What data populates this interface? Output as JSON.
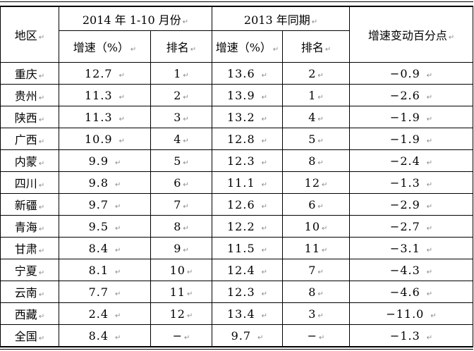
{
  "pmark": "↵",
  "table": {
    "headers": {
      "region": "地区",
      "period_2014": "2014 年 1-10 月份",
      "period_2013": "2013 年同期",
      "change": "增速变动百分点",
      "growth": "增速（%）",
      "rank": "排名"
    },
    "rows": [
      {
        "region": "重庆",
        "g2014": "12.7",
        "r2014": "1",
        "g2013": "13.6",
        "r2013": "2",
        "chg": "−0.9"
      },
      {
        "region": "贵州",
        "g2014": "11.3",
        "r2014": "2",
        "g2013": "13.9",
        "r2013": "1",
        "chg": "−2.6"
      },
      {
        "region": "陕西",
        "g2014": "11.3",
        "r2014": "3",
        "g2013": "13.2",
        "r2013": "4",
        "chg": "−1.9"
      },
      {
        "region": "广西",
        "g2014": "10.9",
        "r2014": "4",
        "g2013": "12.8",
        "r2013": "5",
        "chg": "−1.9"
      },
      {
        "region": "内蒙",
        "g2014": "9.9",
        "r2014": "5",
        "g2013": "12.3",
        "r2013": "8",
        "chg": "−2.4"
      },
      {
        "region": "四川",
        "g2014": "9.8",
        "r2014": "6",
        "g2013": "11.1",
        "r2013": "12",
        "chg": "−1.3"
      },
      {
        "region": "新疆",
        "g2014": "9.7",
        "r2014": "7",
        "g2013": "12.6",
        "r2013": "6",
        "chg": "−2.9"
      },
      {
        "region": "青海",
        "g2014": "9.5",
        "r2014": "8",
        "g2013": "12.2",
        "r2013": "10",
        "chg": "−2.7"
      },
      {
        "region": "甘肃",
        "g2014": "8.4",
        "r2014": "9",
        "g2013": "11.5",
        "r2013": "11",
        "chg": "−3.1"
      },
      {
        "region": "宁夏",
        "g2014": "8.1",
        "r2014": "10",
        "g2013": "12.4",
        "r2013": "7",
        "chg": "−4.3"
      },
      {
        "region": "云南",
        "g2014": "7.7",
        "r2014": "11",
        "g2013": "12.3",
        "r2013": "8",
        "chg": "−4.6"
      },
      {
        "region": "西藏",
        "g2014": "2.4",
        "r2014": "12",
        "g2013": "13.4",
        "r2013": "3",
        "chg": "−11.0"
      },
      {
        "region": "全国",
        "g2014": "8.4",
        "r2014": "−",
        "g2013": "9.7",
        "r2013": "−",
        "chg": "−1.3"
      }
    ]
  }
}
